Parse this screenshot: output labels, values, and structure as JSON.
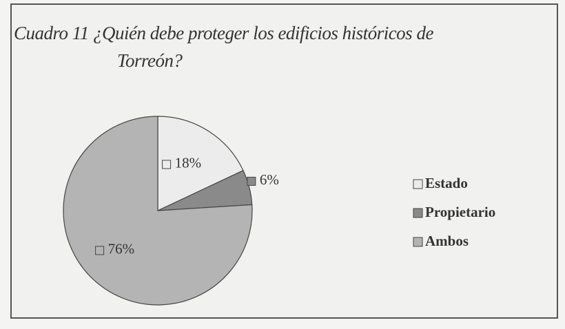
{
  "chart_data": {
    "type": "pie",
    "title": "Cuadro 11 ¿Quién debe proteger los edificios históricos de Torreón?",
    "categories": [
      "Estado",
      "Propietario",
      "Ambos"
    ],
    "values": [
      18,
      6,
      76
    ],
    "value_labels": [
      "18%",
      "6%",
      "76%"
    ],
    "colors": [
      "#ececec",
      "#8a8a8a",
      "#b4b4b4"
    ],
    "legend": "right"
  }
}
